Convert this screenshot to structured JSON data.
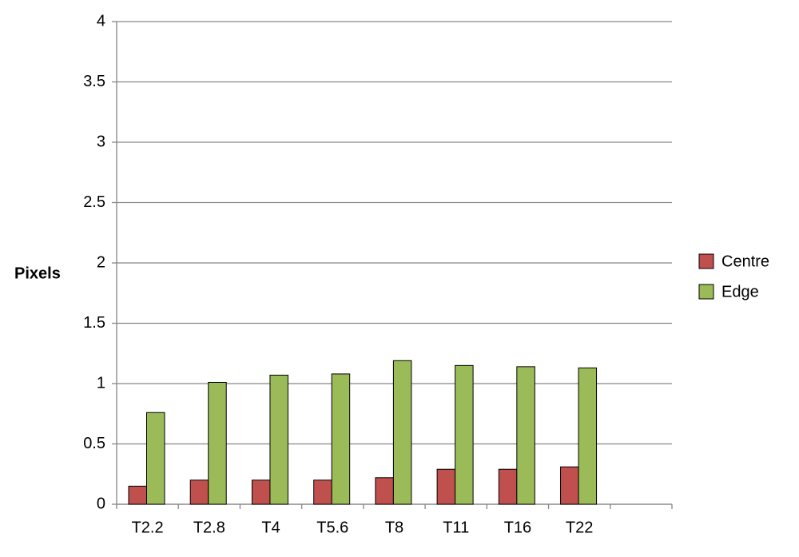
{
  "chart_data": {
    "type": "bar",
    "y_label": "Pixels",
    "categories": [
      "T2.2",
      "T2.8",
      "T4",
      "T5.6",
      "T8",
      "T11",
      "T16",
      "T22",
      null
    ],
    "series": [
      {
        "name": "Centre",
        "color": "#c0504d",
        "values": [
          0.15,
          0.2,
          0.2,
          0.2,
          0.22,
          0.29,
          0.29,
          0.31,
          null
        ]
      },
      {
        "name": "Edge",
        "color": "#9bbb59",
        "values": [
          0.76,
          1.01,
          1.07,
          1.08,
          1.19,
          1.15,
          1.14,
          1.13,
          null
        ]
      }
    ],
    "ylim": [
      0,
      4
    ],
    "yticks": [
      0,
      0.5,
      1,
      1.5,
      2,
      2.5,
      3,
      3.5,
      4
    ],
    "grid": true,
    "legend": "right"
  }
}
